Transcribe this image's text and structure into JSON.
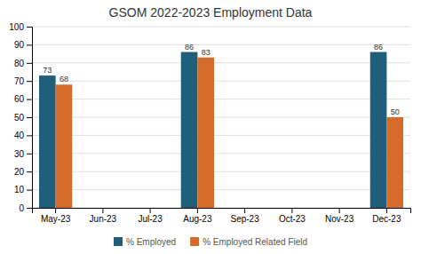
{
  "chart_data": {
    "type": "bar",
    "title": "GSOM 2022-2023 Employment Data",
    "categories": [
      "May-23",
      "Jun-23",
      "Jul-23",
      "Aug-23",
      "Sep-23",
      "Oct-23",
      "Nov-23",
      "Dec-23"
    ],
    "series": [
      {
        "name": "% Employed",
        "color": "#1f5f7a",
        "values": [
          73,
          0,
          0,
          86,
          0,
          0,
          0,
          86
        ],
        "value_labels": [
          "73",
          null,
          null,
          "86",
          null,
          null,
          null,
          "86"
        ]
      },
      {
        "name": "% Employed Related Field",
        "color": "#d46b2a",
        "values": [
          68,
          0,
          0,
          83,
          0,
          0,
          0,
          50
        ],
        "value_labels": [
          "68",
          null,
          null,
          "83",
          null,
          null,
          null,
          "50"
        ]
      }
    ],
    "ylim": [
      0,
      100
    ],
    "yticks": [
      0,
      10,
      20,
      30,
      40,
      50,
      60,
      70,
      80,
      90,
      100
    ],
    "grid": true,
    "legend": "bottom",
    "data_labels": true
  }
}
